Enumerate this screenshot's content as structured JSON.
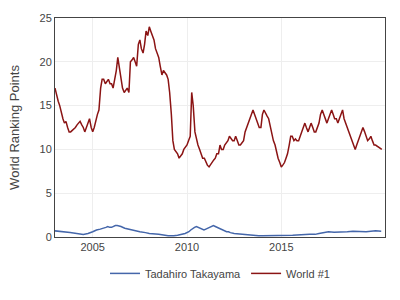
{
  "chart_data": {
    "type": "line",
    "ylabel": "World Ranking Points",
    "xlim": [
      2003.0,
      2020.5
    ],
    "xticks": [
      2005,
      2010,
      2015
    ],
    "ylim": [
      0,
      25
    ],
    "yticks": [
      0,
      5,
      10,
      15,
      20,
      25
    ],
    "grid": true,
    "legend": "bottom",
    "series": [
      {
        "name": "World #1",
        "color": "#8b1414",
        "x": [
          2003.0,
          2003.08,
          2003.17,
          2003.25,
          2003.33,
          2003.42,
          2003.5,
          2003.58,
          2003.67,
          2003.75,
          2003.83,
          2003.92,
          2004.0,
          2004.08,
          2004.17,
          2004.25,
          2004.33,
          2004.42,
          2004.5,
          2004.58,
          2004.67,
          2004.75,
          2004.83,
          2004.92,
          2005.0,
          2005.08,
          2005.17,
          2005.25,
          2005.33,
          2005.42,
          2005.5,
          2005.58,
          2005.67,
          2005.75,
          2005.83,
          2005.92,
          2006.0,
          2006.08,
          2006.17,
          2006.25,
          2006.33,
          2006.42,
          2006.5,
          2006.58,
          2006.67,
          2006.75,
          2006.83,
          2006.92,
          2007.0,
          2007.08,
          2007.17,
          2007.25,
          2007.33,
          2007.42,
          2007.5,
          2007.58,
          2007.67,
          2007.75,
          2007.83,
          2007.92,
          2008.0,
          2008.08,
          2008.17,
          2008.25,
          2008.33,
          2008.42,
          2008.5,
          2008.58,
          2008.67,
          2008.75,
          2008.83,
          2008.92,
          2009.0,
          2009.08,
          2009.17,
          2009.25,
          2009.33,
          2009.42,
          2009.5,
          2009.58,
          2009.67,
          2009.75,
          2009.83,
          2009.92,
          2010.0,
          2010.08,
          2010.17,
          2010.25,
          2010.33,
          2010.42,
          2010.5,
          2010.58,
          2010.67,
          2010.75,
          2010.83,
          2010.92,
          2011.0,
          2011.08,
          2011.17,
          2011.25,
          2011.33,
          2011.42,
          2011.5,
          2011.58,
          2011.67,
          2011.75,
          2011.83,
          2011.92,
          2012.0,
          2012.08,
          2012.17,
          2012.25,
          2012.33,
          2012.42,
          2012.5,
          2012.58,
          2012.67,
          2012.75,
          2012.83,
          2012.92,
          2013.0,
          2013.08,
          2013.17,
          2013.25,
          2013.33,
          2013.42,
          2013.5,
          2013.58,
          2013.67,
          2013.75,
          2013.83,
          2013.92,
          2014.0,
          2014.08,
          2014.17,
          2014.25,
          2014.33,
          2014.42,
          2014.5,
          2014.58,
          2014.67,
          2014.75,
          2014.83,
          2014.92,
          2015.0,
          2015.08,
          2015.17,
          2015.25,
          2015.33,
          2015.42,
          2015.5,
          2015.58,
          2015.67,
          2015.75,
          2015.83,
          2015.92,
          2016.0,
          2016.08,
          2016.17,
          2016.25,
          2016.33,
          2016.42,
          2016.5,
          2016.58,
          2016.67,
          2016.75,
          2016.83,
          2016.92,
          2017.0,
          2017.08,
          2017.17,
          2017.25,
          2017.33,
          2017.42,
          2017.5,
          2017.58,
          2017.67,
          2017.75,
          2017.83,
          2017.92,
          2018.0,
          2018.08,
          2018.17,
          2018.25,
          2018.33,
          2018.42,
          2018.5,
          2018.58,
          2018.67,
          2018.75,
          2018.83,
          2018.92,
          2019.0,
          2019.08,
          2019.17,
          2019.25,
          2019.33,
          2019.42,
          2019.5,
          2019.58,
          2019.67,
          2019.75,
          2019.83,
          2019.92,
          2020.0,
          2020.17,
          2020.33
        ],
        "values": [
          17.0,
          16.2,
          15.5,
          15.0,
          14.2,
          13.5,
          13.0,
          13.2,
          12.5,
          12.0,
          12.0,
          12.2,
          12.3,
          12.5,
          12.8,
          13.0,
          13.2,
          12.8,
          12.5,
          12.0,
          12.5,
          13.0,
          13.5,
          12.5,
          12.0,
          12.5,
          13.5,
          14.0,
          14.5,
          17.0,
          18.0,
          18.0,
          17.5,
          17.8,
          18.0,
          17.5,
          17.5,
          17.0,
          18.0,
          19.0,
          20.5,
          19.0,
          18.0,
          17.0,
          16.5,
          16.8,
          17.0,
          16.5,
          20.0,
          20.2,
          20.5,
          20.0,
          19.5,
          22.0,
          22.5,
          21.5,
          21.0,
          22.0,
          23.5,
          23.0,
          24.0,
          23.5,
          23.0,
          22.5,
          21.5,
          21.0,
          20.5,
          19.5,
          18.5,
          19.0,
          18.8,
          18.5,
          18.0,
          16.5,
          14.0,
          11.0,
          10.0,
          9.7,
          9.5,
          9.0,
          9.2,
          9.5,
          10.0,
          10.2,
          10.5,
          11.0,
          11.5,
          16.5,
          15.0,
          12.0,
          11.0,
          10.5,
          10.0,
          9.5,
          9.0,
          9.0,
          8.5,
          8.2,
          8.0,
          8.3,
          8.5,
          8.8,
          9.0,
          9.5,
          9.5,
          10.5,
          10.0,
          10.0,
          10.5,
          10.8,
          11.0,
          11.5,
          11.2,
          11.0,
          11.0,
          11.5,
          11.0,
          10.5,
          10.5,
          10.8,
          11.0,
          12.0,
          12.5,
          13.0,
          13.5,
          14.0,
          14.5,
          14.0,
          13.5,
          13.0,
          12.5,
          12.5,
          14.0,
          14.5,
          14.2,
          13.8,
          13.5,
          12.5,
          11.5,
          11.0,
          10.5,
          9.5,
          9.0,
          8.5,
          8.0,
          8.2,
          8.5,
          9.0,
          9.5,
          10.5,
          11.5,
          11.5,
          11.0,
          11.2,
          11.0,
          11.0,
          11.5,
          12.0,
          12.5,
          13.0,
          12.5,
          12.0,
          12.5,
          13.0,
          12.5,
          12.0,
          12.0,
          12.5,
          13.0,
          14.0,
          14.5,
          14.0,
          13.5,
          13.0,
          13.5,
          14.0,
          14.5,
          14.0,
          13.5,
          13.5,
          13.0,
          13.5,
          14.0,
          14.5,
          13.5,
          13.0,
          12.5,
          12.0,
          11.5,
          11.0,
          10.5,
          10.0,
          10.5,
          11.0,
          11.5,
          12.0,
          12.5,
          12.0,
          11.5,
          11.0,
          11.2,
          11.5,
          11.0,
          10.5,
          10.5,
          10.2,
          10.0
        ]
      },
      {
        "name": "Tadahiro Takayama",
        "color": "#4466aa",
        "x": [
          2003.0,
          2003.5,
          2003.8,
          2004.5,
          2004.75,
          2005.0,
          2005.1,
          2005.2,
          2005.4,
          2005.6,
          2005.7,
          2005.8,
          2005.9,
          2006.0,
          2006.1,
          2006.2,
          2006.3,
          2006.5,
          2006.7,
          2006.9,
          2007.0,
          2007.2,
          2007.5,
          2007.8,
          2008.0,
          2008.5,
          2008.8,
          2009.0,
          2009.3,
          2009.5,
          2009.9,
          2010.0,
          2010.1,
          2010.2,
          2010.3,
          2010.4,
          2010.5,
          2010.6,
          2010.7,
          2010.8,
          2010.9,
          2011.0,
          2011.1,
          2011.2,
          2011.3,
          2011.4,
          2011.5,
          2011.6,
          2011.7,
          2011.9,
          2012.0,
          2012.1,
          2012.2,
          2012.3,
          2012.5,
          2012.7,
          2013.0,
          2013.3,
          2013.8,
          2014.0,
          2014.5,
          2014.8,
          2015.5,
          2015.6,
          2016.5,
          2016.8,
          2017.0,
          2017.3,
          2017.5,
          2017.8,
          2018.0,
          2018.5,
          2018.8,
          2019.0,
          2019.5,
          2020.0,
          2020.3
        ],
        "values": [
          0.7,
          0.6,
          0.5,
          0.3,
          0.4,
          0.6,
          0.7,
          0.8,
          0.9,
          1.0,
          1.1,
          1.2,
          1.1,
          1.1,
          1.2,
          1.3,
          1.3,
          1.2,
          1.0,
          0.9,
          0.8,
          0.7,
          0.6,
          0.5,
          0.4,
          0.3,
          0.2,
          0.15,
          0.15,
          0.2,
          0.4,
          0.5,
          0.6,
          0.8,
          1.0,
          1.1,
          1.2,
          1.1,
          1.0,
          0.9,
          0.8,
          0.9,
          1.0,
          1.1,
          1.2,
          1.3,
          1.2,
          1.1,
          1.0,
          0.8,
          0.7,
          0.6,
          0.6,
          0.5,
          0.4,
          0.35,
          0.3,
          0.2,
          0.15,
          0.15,
          0.15,
          0.15,
          0.2,
          0.2,
          0.3,
          0.3,
          0.4,
          0.5,
          0.6,
          0.55,
          0.55,
          0.6,
          0.65,
          0.65,
          0.6,
          0.7,
          0.65
        ]
      }
    ]
  }
}
